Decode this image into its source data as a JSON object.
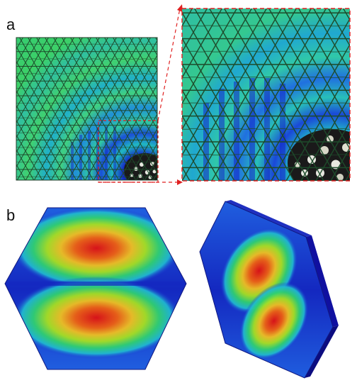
{
  "panels": {
    "a": {
      "label": "a",
      "colors": {
        "honeycomb_cell": "#2fd16a",
        "honeycomb_edge": "#1d4a2a",
        "wave_band": "#20b8c0",
        "deep_band": "#1428c8",
        "fracture_dark": "#1a1a1a",
        "fracture_light": "#e8e8e0",
        "zoom_marker": "#e02020"
      }
    },
    "b": {
      "label": "b",
      "colors": {
        "field_low": "#1a2fd0",
        "field_mid": "#20d0c0",
        "field_high_1": "#a8e020",
        "field_high_2": "#f0a010",
        "field_peak": "#e01010",
        "side_face": "#1010a0"
      }
    }
  }
}
